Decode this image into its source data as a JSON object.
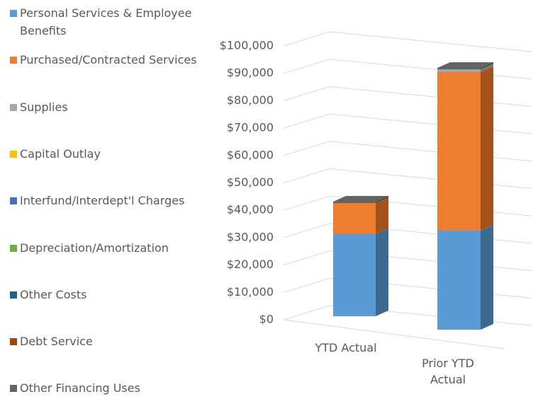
{
  "chart_data": {
    "type": "bar3d-stacked",
    "categories": [
      "YTD Actual",
      "Prior YTD Actual"
    ],
    "series": [
      {
        "name": "Personal Services & Employee Benefits",
        "color": "#5b9bd5",
        "side": "#3e6a92",
        "values": [
          29000,
          35000
        ]
      },
      {
        "name": "Purchased/Contracted Services",
        "color": "#ed7d31",
        "side": "#a3521c",
        "values": [
          11000,
          56000
        ]
      },
      {
        "name": "Supplies",
        "color": "#a5a5a5",
        "side": "#777777",
        "values": [
          0,
          1000
        ]
      },
      {
        "name": "Capital Outlay",
        "color": "#ffc000",
        "side": "#b38600",
        "values": [
          0,
          0
        ]
      },
      {
        "name": "Interfund/Interdept'l Charges",
        "color": "#4472c4",
        "side": "#2f5088",
        "values": [
          0,
          0
        ]
      },
      {
        "name": "Depreciation/Amortization",
        "color": "#70ad47",
        "side": "#4e7931",
        "values": [
          0,
          0
        ]
      },
      {
        "name": "Other Costs",
        "color": "#255e91",
        "side": "#1a4266",
        "values": [
          0,
          0
        ]
      },
      {
        "name": "Debt Service",
        "color": "#9e480e",
        "side": "#6e320a",
        "values": [
          0,
          0
        ]
      },
      {
        "name": "Other Financing Uses",
        "color": "#636363",
        "side": "#444444",
        "values": [
          500,
          500
        ]
      }
    ],
    "ylim": [
      0,
      100000
    ],
    "yticks": [
      {
        "value": 0,
        "label": "$0"
      },
      {
        "value": 10000,
        "label": "$10,000"
      },
      {
        "value": 20000,
        "label": "$20,000"
      },
      {
        "value": 30000,
        "label": "$30,000"
      },
      {
        "value": 40000,
        "label": "$40,000"
      },
      {
        "value": 50000,
        "label": "$50,000"
      },
      {
        "value": 60000,
        "label": "$60,000"
      },
      {
        "value": 70000,
        "label": "$70,000"
      },
      {
        "value": 80000,
        "label": "$80,000"
      },
      {
        "value": 90000,
        "label": "$90,000"
      },
      {
        "value": 100000,
        "label": "$100,000"
      }
    ],
    "grid": true,
    "legend": "left"
  }
}
